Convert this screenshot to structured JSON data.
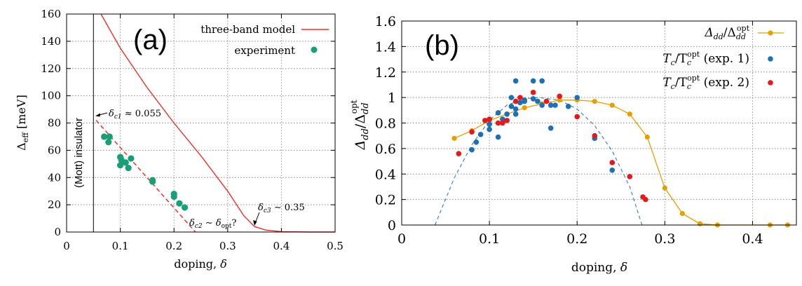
{
  "colors": {
    "model": "#e8322a",
    "experiment": "#1a9e77",
    "ratio": "#e69f00",
    "exp1": "#1f6fb4",
    "exp2": "#e31a1c",
    "grid": "#888888",
    "axis": "#000000"
  },
  "chart_data": [
    {
      "type": "line",
      "panel_label": "(a)",
      "xlabel_text": "doping, ",
      "xlabel_symbol": "δ",
      "ylabel_main": "Δ",
      "ylabel_sub": "eff",
      "ylabel_unit": " [meV]",
      "xlim": [
        0,
        0.5
      ],
      "ylim": [
        0,
        160
      ],
      "xticks": [
        0,
        0.1,
        0.2,
        0.3,
        0.4,
        0.5
      ],
      "xtick_labels": [
        "0",
        "0.1",
        "0.2",
        "0.3",
        "0.4",
        "0.5"
      ],
      "yticks": [
        0,
        20,
        40,
        60,
        80,
        100,
        120,
        140,
        160
      ],
      "ytick_labels": [
        "0",
        "20",
        "40",
        "60",
        "80",
        "100",
        "120",
        "140",
        "160"
      ],
      "grid": true,
      "legend": [
        {
          "label": "three-band model",
          "series": "model"
        },
        {
          "label": "experiment",
          "series": "experiment"
        }
      ],
      "series": [
        {
          "name": "model",
          "label": "three-band model",
          "x": [
            0.064,
            0.1,
            0.15,
            0.2,
            0.25,
            0.3,
            0.33,
            0.35,
            0.37,
            0.4,
            0.45,
            0.5
          ],
          "y": [
            160,
            135,
            106,
            80,
            56,
            30,
            12,
            4,
            1.5,
            0.3,
            0,
            0
          ]
        },
        {
          "name": "experiment",
          "label": "experiment",
          "x": [
            0.07,
            0.08,
            0.078,
            0.1,
            0.102,
            0.1,
            0.11,
            0.12,
            0.115,
            0.16,
            0.16,
            0.2,
            0.2,
            0.21,
            0.22
          ],
          "y": [
            70,
            70,
            66,
            55,
            53,
            49,
            51,
            54,
            47,
            38,
            37,
            28,
            26,
            21,
            18
          ]
        },
        {
          "name": "extrapolation",
          "style": "dashed",
          "x": [
            0.055,
            0.24
          ],
          "y": [
            82,
            0
          ]
        }
      ],
      "annotations": [
        {
          "id": "mott",
          "text": "(Mott) insulator"
        },
        {
          "id": "dc1_sym",
          "text": "δ"
        },
        {
          "id": "dc1_sub",
          "text": "c1"
        },
        {
          "id": "dc1_val",
          "text": " ≈ 0.055"
        },
        {
          "id": "dc2_sym",
          "text": "δ"
        },
        {
          "id": "dc2_sub",
          "text": "c2"
        },
        {
          "id": "dc2_mid",
          "text": " ∼ δ"
        },
        {
          "id": "dc2_sub2",
          "text": "opt"
        },
        {
          "id": "dc2_q",
          "text": "?"
        },
        {
          "id": "dc3_sym",
          "text": "δ"
        },
        {
          "id": "dc3_sub",
          "text": "c3"
        },
        {
          "id": "dc3_val",
          "text": " ∼ 0.35"
        }
      ],
      "mott_x": 0.05
    },
    {
      "type": "line",
      "panel_label": "(b)",
      "xlabel_text": "doping, ",
      "xlabel_symbol": "δ",
      "ylabel_top": "opt",
      "ylabel_main": "Δ",
      "ylabel_sub": "dd",
      "ylabel_slash": "/Δ",
      "ylabel_sub2": "dd",
      "xlim": [
        0,
        0.45
      ],
      "ylim": [
        0,
        1.6
      ],
      "xticks": [
        0,
        0.1,
        0.2,
        0.3,
        0.4
      ],
      "xtick_labels": [
        "0",
        "0.1",
        "0.2",
        "0.3",
        "0.4"
      ],
      "yticks": [
        0,
        0.2,
        0.4,
        0.6,
        0.8,
        1.0,
        1.2,
        1.4,
        1.6
      ],
      "ytick_labels": [
        "0",
        "0.2",
        "0.4",
        "0.6",
        "0.8",
        "1",
        "1.2",
        "1.4",
        "1.6"
      ],
      "grid": true,
      "legend": [
        {
          "series": "ratio",
          "a": "Δ",
          "a_sub": "dd",
          "b": "/Δ",
          "b_sub": "dd",
          "b_sup": "opt",
          "tail": ""
        },
        {
          "series": "exp1",
          "a": "T",
          "a_sub": "c",
          "b": "/T",
          "b_sub": "c",
          "b_sup": "opt",
          "tail": " (exp. 1)"
        },
        {
          "series": "exp2",
          "a": "T",
          "a_sub": "c",
          "b": "/T",
          "b_sub": "c",
          "b_sup": "opt",
          "tail": " (exp. 2)"
        }
      ],
      "series": [
        {
          "name": "ratio",
          "style": "line+points",
          "x": [
            0.06,
            0.08,
            0.1,
            0.12,
            0.14,
            0.16,
            0.18,
            0.2,
            0.22,
            0.24,
            0.26,
            0.28,
            0.3,
            0.32,
            0.34,
            0.36,
            0.42,
            0.44
          ],
          "y": [
            0.68,
            0.74,
            0.82,
            0.87,
            0.92,
            0.95,
            0.98,
            0.98,
            0.97,
            0.94,
            0.87,
            0.69,
            0.29,
            0.09,
            0.01,
            0.0,
            0.0,
            0.0
          ]
        },
        {
          "name": "exp1",
          "style": "points",
          "x": [
            0.08,
            0.085,
            0.09,
            0.1,
            0.1,
            0.11,
            0.11,
            0.115,
            0.12,
            0.125,
            0.125,
            0.13,
            0.13,
            0.13,
            0.135,
            0.14,
            0.14,
            0.15,
            0.15,
            0.155,
            0.16,
            0.16,
            0.17,
            0.17,
            0.175,
            0.19,
            0.2,
            0.22,
            0.24
          ],
          "y": [
            0.59,
            0.65,
            0.71,
            0.75,
            0.79,
            0.69,
            0.88,
            0.83,
            0.87,
            0.93,
            1.0,
            0.91,
            0.87,
            1.13,
            0.96,
            0.98,
            0.97,
            0.99,
            1.13,
            0.97,
            1.13,
            0.94,
            0.94,
            0.76,
            0.94,
            0.93,
            1.0,
            0.68,
            0.43
          ]
        },
        {
          "name": "exp2",
          "style": "points",
          "x": [
            0.065,
            0.08,
            0.095,
            0.1,
            0.11,
            0.115,
            0.12,
            0.13,
            0.135,
            0.15,
            0.165,
            0.18,
            0.2,
            0.22,
            0.24,
            0.26,
            0.275,
            0.278
          ],
          "y": [
            0.56,
            0.73,
            0.82,
            0.83,
            0.8,
            0.8,
            0.82,
            0.97,
            1.0,
            1.04,
            0.97,
            1.01,
            0.85,
            0.7,
            0.49,
            0.38,
            0.22,
            0.2
          ]
        },
        {
          "name": "parabola",
          "style": "dashed",
          "x": [
            0.038,
            0.06,
            0.08,
            0.1,
            0.12,
            0.14,
            0.156,
            0.18,
            0.2,
            0.22,
            0.24,
            0.26,
            0.274
          ],
          "y": [
            0.0,
            0.37,
            0.63,
            0.82,
            0.94,
            0.99,
            1.0,
            0.98,
            0.91,
            0.78,
            0.58,
            0.3,
            0.0
          ]
        }
      ]
    }
  ]
}
